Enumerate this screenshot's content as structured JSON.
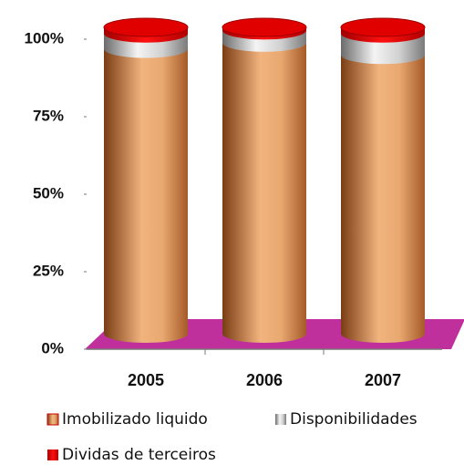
{
  "chart_data": {
    "type": "stacked_cylinder",
    "categories": [
      "2005",
      "2006",
      "2007"
    ],
    "series": [
      {
        "name": "Imobilizado liquido",
        "color": "#c8743c",
        "values": [
          93,
          95,
          91
        ]
      },
      {
        "name": "Disponibilidades",
        "color": "#b0b0b0",
        "values": [
          5,
          4,
          7
        ]
      },
      {
        "name": "Dividas de terceiros",
        "color": "#e00000",
        "values": [
          2,
          1,
          2
        ]
      }
    ],
    "ylim": [
      0,
      100
    ],
    "yticks": [
      {
        "value": 0,
        "label": "0%"
      },
      {
        "value": 25,
        "label": "25%"
      },
      {
        "value": 50,
        "label": "50%"
      },
      {
        "value": 75,
        "label": "75%"
      },
      {
        "value": 100,
        "label": "100%"
      }
    ],
    "floor_color": "#c0309c"
  }
}
